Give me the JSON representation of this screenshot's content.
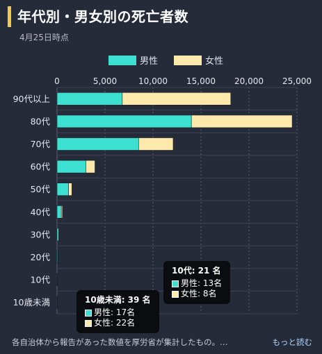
{
  "header": {
    "title": "年代別・男女別の死亡者数",
    "date": "4月25日時点"
  },
  "colors": {
    "male": "#3ddfd0",
    "female": "#fde9ac",
    "title_accent": "#f2c94c",
    "link": "#a9d3ff"
  },
  "chart_data": {
    "type": "bar",
    "orientation": "horizontal",
    "stacked": true,
    "categories": [
      "90代以上",
      "80代",
      "70代",
      "60代",
      "50代",
      "40代",
      "30代",
      "20代",
      "10代",
      "10歳未満"
    ],
    "series": [
      {
        "name": "男性",
        "values": [
          6800,
          14000,
          8500,
          3000,
          1200,
          450,
          180,
          80,
          13,
          17
        ]
      },
      {
        "name": "女性",
        "values": [
          11300,
          10500,
          3600,
          950,
          350,
          120,
          40,
          20,
          8,
          22
        ]
      }
    ],
    "xlim": [
      0,
      25000
    ],
    "xticks": [
      0,
      5000,
      10000,
      15000,
      20000,
      25000
    ],
    "xtick_labels": [
      "0",
      "5,000",
      "10,000",
      "15,000",
      "20,000",
      "25,000"
    ],
    "legend_position": "top",
    "grid": true
  },
  "tooltips": [
    {
      "title": "10代: 21 名",
      "male": "男性: 13名",
      "female": "女性: 8名"
    },
    {
      "title": "10歳未満: 39 名",
      "male": "男性: 17名",
      "female": "女性: 22名"
    }
  ],
  "footer": {
    "note": "各自治体から報告があった数値を厚労省が集計したもの。…",
    "more": "もっと読む"
  }
}
